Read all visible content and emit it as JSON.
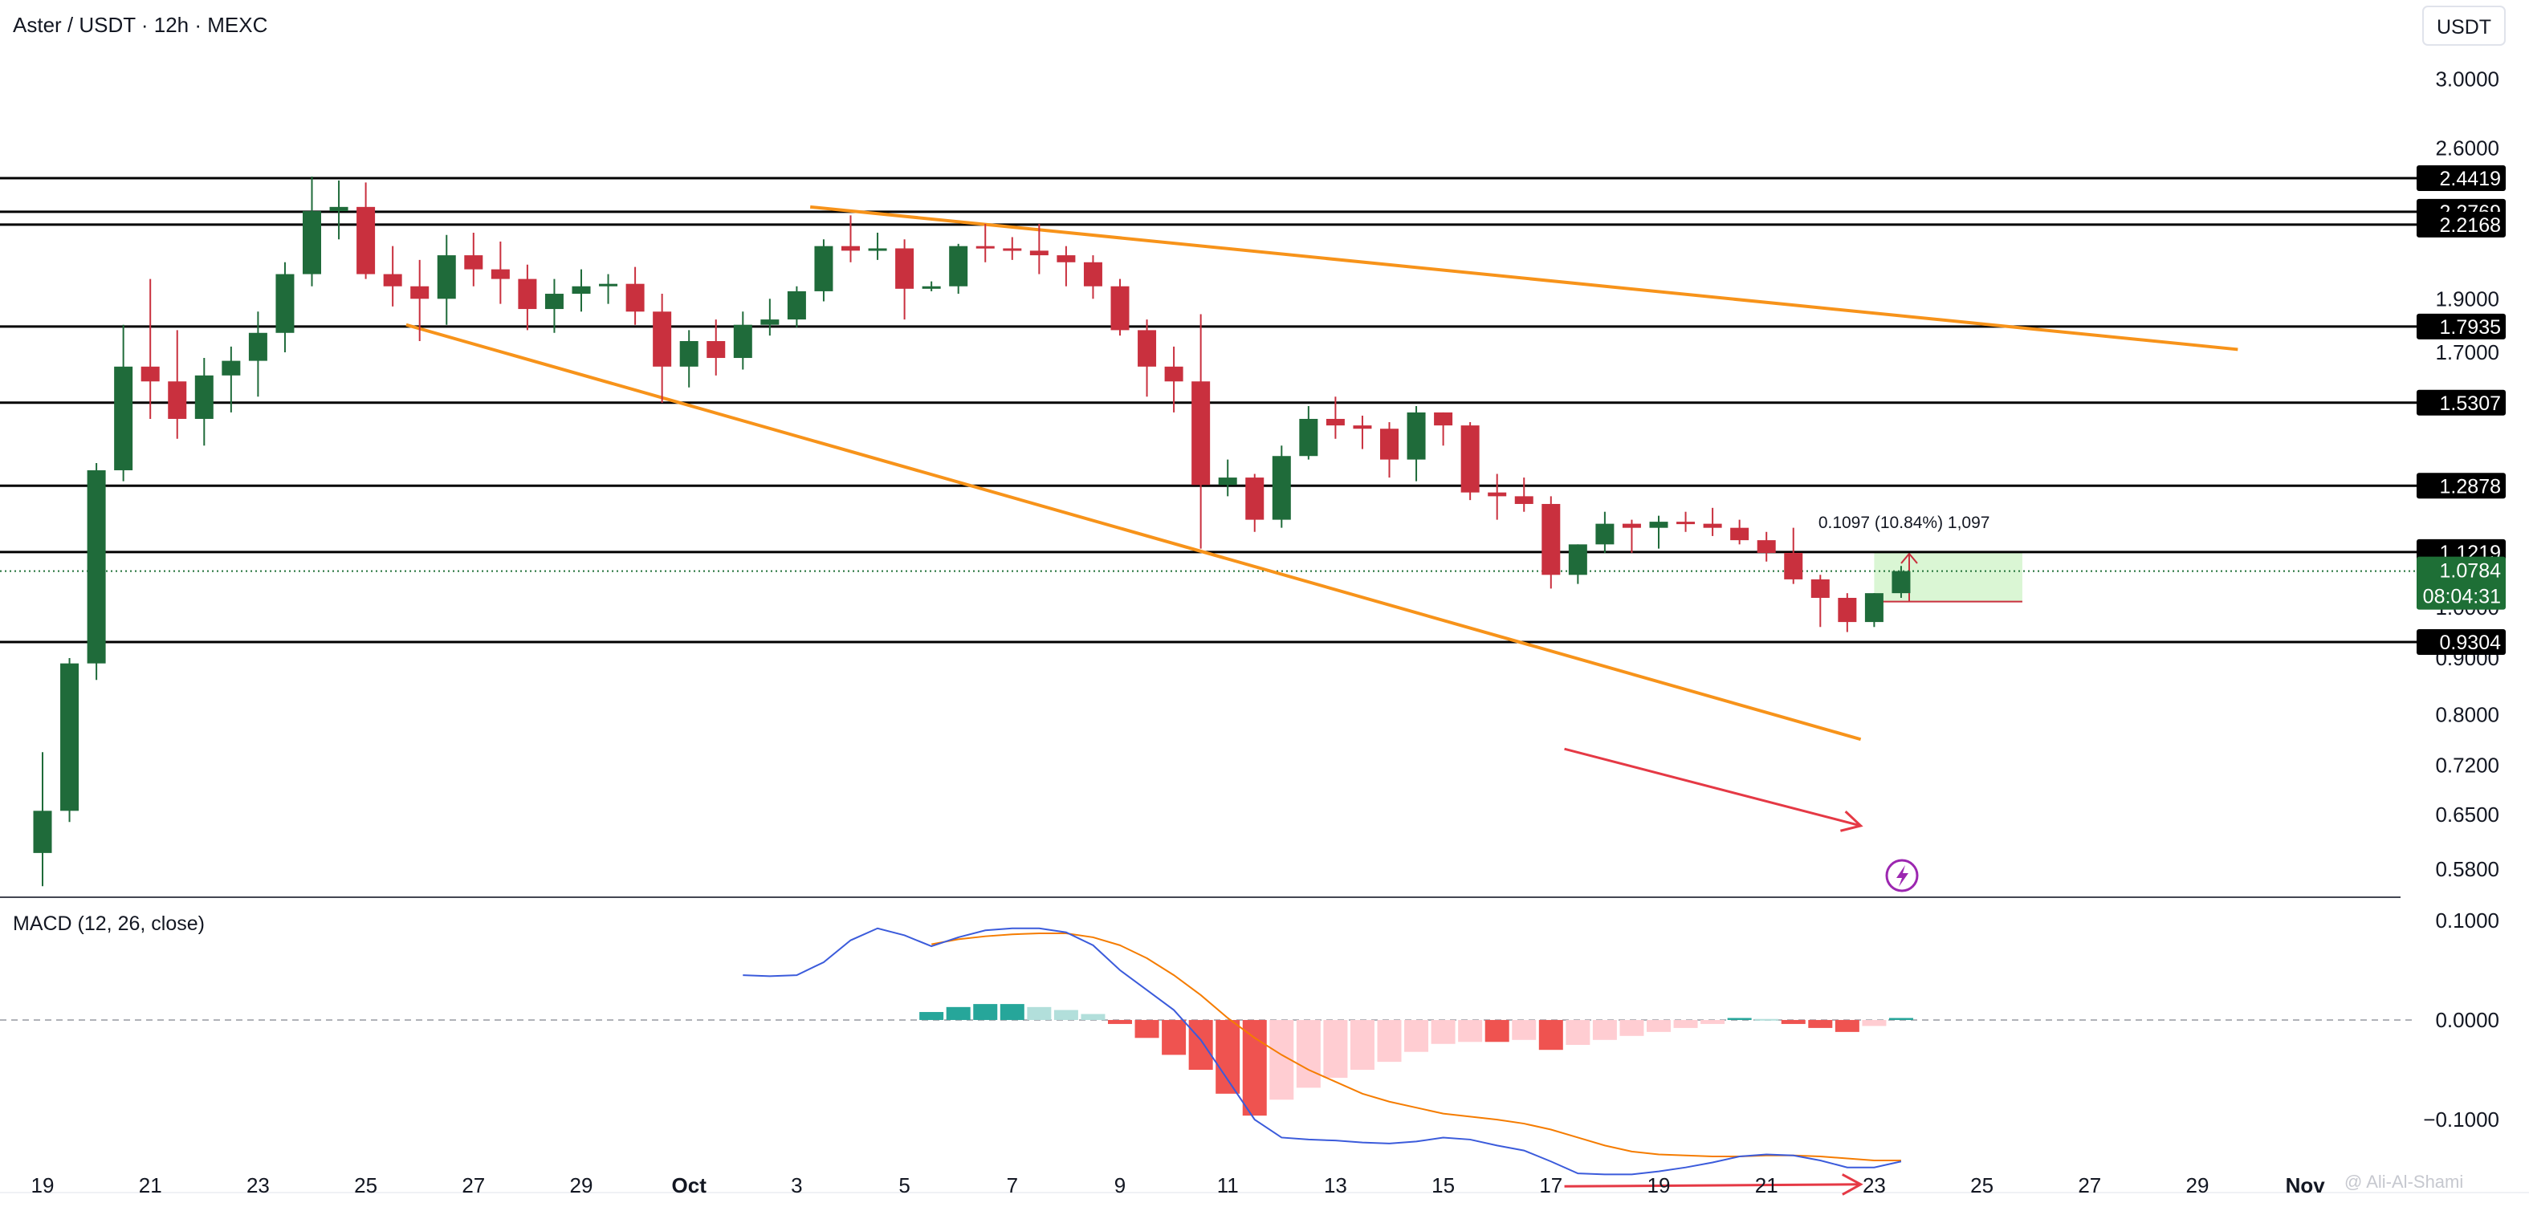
{
  "header": {
    "title": "Aster / USDT · 12h · MEXC",
    "currency_button": "USDT",
    "watermark": "@ Ali-Al-Shami"
  },
  "colors": {
    "bull": "#1f6b3a",
    "bear": "#c9303e",
    "trendline": "#f7931a",
    "arrow": "#e53945",
    "macd_line": "#3b5bdb",
    "signal_line": "#f57c00",
    "hist_pos_strong": "#26a69a",
    "hist_pos_weak": "#b2dfdb",
    "hist_neg_strong": "#ef5350",
    "hist_neg_weak": "#ffcdd2",
    "level_tag": "#000000",
    "current_tag": "#1e6f36",
    "measure_fill": "#d4f5cc"
  },
  "chart_data": [
    {
      "type": "candlestick",
      "title": "Aster / USDT · 12h · MEXC",
      "scale": "log",
      "ylim": [
        0.55,
        3.2
      ],
      "price_axis_labels": [
        "3.0000",
        "2.6000",
        "1.9000",
        "1.7000",
        "1.3000",
        "1.0000",
        "0.9000",
        "0.8000",
        "0.7200",
        "0.6500",
        "0.5800"
      ],
      "price_axis_values": [
        3.0,
        2.6,
        1.9,
        1.7,
        1.3,
        1.0,
        0.9,
        0.8,
        0.72,
        0.65,
        0.58
      ],
      "x_tick_labels": [
        "19",
        "21",
        "23",
        "25",
        "27",
        "29",
        "Oct",
        "3",
        "5",
        "7",
        "9",
        "11",
        "13",
        "15",
        "17",
        "19",
        "21",
        "23",
        "25",
        "27",
        "29",
        "Nov"
      ],
      "x_tick_index": [
        0,
        4,
        8,
        12,
        16,
        20,
        24,
        28,
        32,
        36,
        40,
        44,
        48,
        52,
        56,
        60,
        64,
        68,
        72,
        76,
        80,
        84
      ],
      "candles": [
        {
          "o": 0.6,
          "h": 0.74,
          "l": 0.56,
          "c": 0.655
        },
        {
          "o": 0.655,
          "h": 0.9,
          "l": 0.64,
          "c": 0.89
        },
        {
          "o": 0.89,
          "h": 1.35,
          "l": 0.86,
          "c": 1.33
        },
        {
          "o": 1.33,
          "h": 1.8,
          "l": 1.3,
          "c": 1.65
        },
        {
          "o": 1.65,
          "h": 1.98,
          "l": 1.48,
          "c": 1.6
        },
        {
          "o": 1.6,
          "h": 1.78,
          "l": 1.42,
          "c": 1.48
        },
        {
          "o": 1.48,
          "h": 1.68,
          "l": 1.4,
          "c": 1.62
        },
        {
          "o": 1.62,
          "h": 1.72,
          "l": 1.5,
          "c": 1.67
        },
        {
          "o": 1.67,
          "h": 1.85,
          "l": 1.55,
          "c": 1.77
        },
        {
          "o": 1.77,
          "h": 2.05,
          "l": 1.7,
          "c": 2.0
        },
        {
          "o": 2.0,
          "h": 2.45,
          "l": 1.95,
          "c": 2.28
        },
        {
          "o": 2.28,
          "h": 2.43,
          "l": 2.15,
          "c": 2.3
        },
        {
          "o": 2.3,
          "h": 2.42,
          "l": 1.98,
          "c": 2.0
        },
        {
          "o": 2.0,
          "h": 2.12,
          "l": 1.87,
          "c": 1.95
        },
        {
          "o": 1.95,
          "h": 2.06,
          "l": 1.74,
          "c": 1.9
        },
        {
          "o": 1.9,
          "h": 2.17,
          "l": 1.8,
          "c": 2.08
        },
        {
          "o": 2.08,
          "h": 2.18,
          "l": 1.95,
          "c": 2.02
        },
        {
          "o": 2.02,
          "h": 2.14,
          "l": 1.88,
          "c": 1.98
        },
        {
          "o": 1.98,
          "h": 2.04,
          "l": 1.78,
          "c": 1.86
        },
        {
          "o": 1.86,
          "h": 1.98,
          "l": 1.77,
          "c": 1.92
        },
        {
          "o": 1.92,
          "h": 2.02,
          "l": 1.85,
          "c": 1.95
        },
        {
          "o": 1.95,
          "h": 2.0,
          "l": 1.88,
          "c": 1.96
        },
        {
          "o": 1.96,
          "h": 2.03,
          "l": 1.8,
          "c": 1.85
        },
        {
          "o": 1.85,
          "h": 1.92,
          "l": 1.53,
          "c": 1.65
        },
        {
          "o": 1.65,
          "h": 1.78,
          "l": 1.58,
          "c": 1.74
        },
        {
          "o": 1.74,
          "h": 1.82,
          "l": 1.62,
          "c": 1.68
        },
        {
          "o": 1.68,
          "h": 1.85,
          "l": 1.64,
          "c": 1.8
        },
        {
          "o": 1.8,
          "h": 1.9,
          "l": 1.76,
          "c": 1.82
        },
        {
          "o": 1.82,
          "h": 1.95,
          "l": 1.79,
          "c": 1.93
        },
        {
          "o": 1.93,
          "h": 2.15,
          "l": 1.89,
          "c": 2.12
        },
        {
          "o": 2.12,
          "h": 2.26,
          "l": 2.05,
          "c": 2.1
        },
        {
          "o": 2.1,
          "h": 2.18,
          "l": 2.06,
          "c": 2.11
        },
        {
          "o": 2.11,
          "h": 2.15,
          "l": 1.82,
          "c": 1.94
        },
        {
          "o": 1.94,
          "h": 1.97,
          "l": 1.93,
          "c": 1.95
        },
        {
          "o": 1.95,
          "h": 2.13,
          "l": 1.92,
          "c": 2.12
        },
        {
          "o": 2.12,
          "h": 2.22,
          "l": 2.05,
          "c": 2.11
        },
        {
          "o": 2.11,
          "h": 2.16,
          "l": 2.06,
          "c": 2.1
        },
        {
          "o": 2.1,
          "h": 2.22,
          "l": 2.0,
          "c": 2.08
        },
        {
          "o": 2.08,
          "h": 2.12,
          "l": 1.95,
          "c": 2.05
        },
        {
          "o": 2.05,
          "h": 2.08,
          "l": 1.9,
          "c": 1.95
        },
        {
          "o": 1.95,
          "h": 1.98,
          "l": 1.76,
          "c": 1.78
        },
        {
          "o": 1.78,
          "h": 1.82,
          "l": 1.55,
          "c": 1.65
        },
        {
          "o": 1.65,
          "h": 1.72,
          "l": 1.5,
          "c": 1.6
        },
        {
          "o": 1.6,
          "h": 1.84,
          "l": 1.13,
          "c": 1.29
        },
        {
          "o": 1.29,
          "h": 1.36,
          "l": 1.26,
          "c": 1.31
        },
        {
          "o": 1.31,
          "h": 1.32,
          "l": 1.17,
          "c": 1.2
        },
        {
          "o": 1.2,
          "h": 1.4,
          "l": 1.18,
          "c": 1.37
        },
        {
          "o": 1.37,
          "h": 1.52,
          "l": 1.36,
          "c": 1.48
        },
        {
          "o": 1.48,
          "h": 1.55,
          "l": 1.42,
          "c": 1.46
        },
        {
          "o": 1.46,
          "h": 1.49,
          "l": 1.39,
          "c": 1.45
        },
        {
          "o": 1.45,
          "h": 1.47,
          "l": 1.31,
          "c": 1.36
        },
        {
          "o": 1.36,
          "h": 1.52,
          "l": 1.3,
          "c": 1.5
        },
        {
          "o": 1.5,
          "h": 1.5,
          "l": 1.4,
          "c": 1.46
        },
        {
          "o": 1.46,
          "h": 1.47,
          "l": 1.25,
          "c": 1.27
        },
        {
          "o": 1.27,
          "h": 1.32,
          "l": 1.2,
          "c": 1.26
        },
        {
          "o": 1.26,
          "h": 1.31,
          "l": 1.22,
          "c": 1.24
        },
        {
          "o": 1.24,
          "h": 1.26,
          "l": 1.04,
          "c": 1.07
        },
        {
          "o": 1.07,
          "h": 1.14,
          "l": 1.05,
          "c": 1.14
        },
        {
          "o": 1.14,
          "h": 1.22,
          "l": 1.12,
          "c": 1.19
        },
        {
          "o": 1.19,
          "h": 1.2,
          "l": 1.12,
          "c": 1.18
        },
        {
          "o": 1.18,
          "h": 1.21,
          "l": 1.13,
          "c": 1.195
        },
        {
          "o": 1.195,
          "h": 1.22,
          "l": 1.17,
          "c": 1.19
        },
        {
          "o": 1.19,
          "h": 1.23,
          "l": 1.16,
          "c": 1.18
        },
        {
          "o": 1.18,
          "h": 1.2,
          "l": 1.14,
          "c": 1.15
        },
        {
          "o": 1.15,
          "h": 1.17,
          "l": 1.1,
          "c": 1.12
        },
        {
          "o": 1.12,
          "h": 1.18,
          "l": 1.05,
          "c": 1.06
        },
        {
          "o": 1.06,
          "h": 1.07,
          "l": 0.96,
          "c": 1.02
        },
        {
          "o": 1.02,
          "h": 1.03,
          "l": 0.95,
          "c": 0.97
        },
        {
          "o": 0.97,
          "h": 1.03,
          "l": 0.96,
          "c": 1.03
        },
        {
          "o": 1.03,
          "h": 1.09,
          "l": 1.02,
          "c": 1.0784
        }
      ],
      "horizontal_levels": [
        2.4419,
        2.2769,
        2.2168,
        1.7935,
        1.5307,
        1.2878,
        1.1219,
        0.9304
      ],
      "level_labels": [
        "2.4419",
        "2.2769",
        "2.2168",
        "1.7935",
        "1.5307",
        "1.2878",
        "1.1219",
        "0.9304"
      ],
      "current_price": 1.0784,
      "current_price_label": "1.0784",
      "countdown_label": "08:04:31",
      "trendlines": [
        {
          "from": {
            "i": 28.5,
            "p": 2.3
          },
          "to": {
            "i": 81.5,
            "p": 1.71
          }
        },
        {
          "from": {
            "i": 13.5,
            "p": 1.8
          },
          "to": {
            "i": 67.5,
            "p": 0.76
          }
        }
      ],
      "price_arrow": {
        "from": {
          "i": 56.5,
          "p": 0.745
        },
        "to": {
          "i": 67.5,
          "p": 0.635
        }
      },
      "measurement": {
        "text": "0.1097 (10.84%) 1,097",
        "from_i": 68,
        "to_i": 73.5,
        "low": 1.0122,
        "high": 1.1219
      }
    },
    {
      "type": "macd",
      "title": "MACD (12, 26, close)",
      "ylim": [
        -0.17,
        0.12
      ],
      "axis_labels": [
        "0.1000",
        "0.0000",
        "−0.1000"
      ],
      "axis_values": [
        0.1,
        0.0,
        -0.1
      ],
      "histogram": [
        {
          "i": 33,
          "v": 0.008
        },
        {
          "i": 34,
          "v": 0.013
        },
        {
          "i": 35,
          "v": 0.016
        },
        {
          "i": 36,
          "v": 0.016
        },
        {
          "i": 37,
          "v": 0.013
        },
        {
          "i": 38,
          "v": 0.01
        },
        {
          "i": 39,
          "v": 0.006
        },
        {
          "i": 40,
          "v": -0.004
        },
        {
          "i": 41,
          "v": -0.018
        },
        {
          "i": 42,
          "v": -0.035
        },
        {
          "i": 43,
          "v": -0.05
        },
        {
          "i": 44,
          "v": -0.074
        },
        {
          "i": 45,
          "v": -0.096
        },
        {
          "i": 46,
          "v": -0.08
        },
        {
          "i": 47,
          "v": -0.068
        },
        {
          "i": 48,
          "v": -0.058
        },
        {
          "i": 49,
          "v": -0.05
        },
        {
          "i": 50,
          "v": -0.042
        },
        {
          "i": 51,
          "v": -0.032
        },
        {
          "i": 52,
          "v": -0.024
        },
        {
          "i": 53,
          "v": -0.022
        },
        {
          "i": 54,
          "v": -0.022
        },
        {
          "i": 55,
          "v": -0.02
        },
        {
          "i": 56,
          "v": -0.03
        },
        {
          "i": 57,
          "v": -0.025
        },
        {
          "i": 58,
          "v": -0.02
        },
        {
          "i": 59,
          "v": -0.016
        },
        {
          "i": 60,
          "v": -0.012
        },
        {
          "i": 61,
          "v": -0.008
        },
        {
          "i": 62,
          "v": -0.004
        },
        {
          "i": 63,
          "v": 0.002
        },
        {
          "i": 64,
          "v": 0.001
        },
        {
          "i": 65,
          "v": -0.004
        },
        {
          "i": 66,
          "v": -0.008
        },
        {
          "i": 67,
          "v": -0.012
        },
        {
          "i": 68,
          "v": -0.006
        },
        {
          "i": 69,
          "v": 0.002
        }
      ],
      "macd_line": [
        {
          "i": 26,
          "v": 0.045
        },
        {
          "i": 27,
          "v": 0.044
        },
        {
          "i": 28,
          "v": 0.045
        },
        {
          "i": 29,
          "v": 0.058
        },
        {
          "i": 30,
          "v": 0.08
        },
        {
          "i": 31,
          "v": 0.092
        },
        {
          "i": 32,
          "v": 0.085
        },
        {
          "i": 33,
          "v": 0.074
        },
        {
          "i": 34,
          "v": 0.083
        },
        {
          "i": 35,
          "v": 0.09
        },
        {
          "i": 36,
          "v": 0.092
        },
        {
          "i": 37,
          "v": 0.092
        },
        {
          "i": 38,
          "v": 0.088
        },
        {
          "i": 39,
          "v": 0.075
        },
        {
          "i": 40,
          "v": 0.05
        },
        {
          "i": 41,
          "v": 0.03
        },
        {
          "i": 42,
          "v": 0.01
        },
        {
          "i": 43,
          "v": -0.02
        },
        {
          "i": 44,
          "v": -0.06
        },
        {
          "i": 45,
          "v": -0.1
        },
        {
          "i": 46,
          "v": -0.118
        },
        {
          "i": 47,
          "v": -0.12
        },
        {
          "i": 48,
          "v": -0.121
        },
        {
          "i": 49,
          "v": -0.123
        },
        {
          "i": 50,
          "v": -0.124
        },
        {
          "i": 51,
          "v": -0.122
        },
        {
          "i": 52,
          "v": -0.118
        },
        {
          "i": 53,
          "v": -0.12
        },
        {
          "i": 54,
          "v": -0.126
        },
        {
          "i": 55,
          "v": -0.131
        },
        {
          "i": 56,
          "v": -0.142
        },
        {
          "i": 57,
          "v": -0.154
        },
        {
          "i": 58,
          "v": -0.155
        },
        {
          "i": 59,
          "v": -0.155
        },
        {
          "i": 60,
          "v": -0.152
        },
        {
          "i": 61,
          "v": -0.148
        },
        {
          "i": 62,
          "v": -0.143
        },
        {
          "i": 63,
          "v": -0.137
        },
        {
          "i": 64,
          "v": -0.135
        },
        {
          "i": 65,
          "v": -0.136
        },
        {
          "i": 66,
          "v": -0.141
        },
        {
          "i": 67,
          "v": -0.148
        },
        {
          "i": 68,
          "v": -0.148
        },
        {
          "i": 69,
          "v": -0.142
        }
      ],
      "signal_line": [
        {
          "i": 33,
          "v": 0.076
        },
        {
          "i": 34,
          "v": 0.081
        },
        {
          "i": 35,
          "v": 0.084
        },
        {
          "i": 36,
          "v": 0.086
        },
        {
          "i": 37,
          "v": 0.087
        },
        {
          "i": 38,
          "v": 0.087
        },
        {
          "i": 39,
          "v": 0.083
        },
        {
          "i": 40,
          "v": 0.075
        },
        {
          "i": 41,
          "v": 0.062
        },
        {
          "i": 42,
          "v": 0.045
        },
        {
          "i": 43,
          "v": 0.025
        },
        {
          "i": 44,
          "v": 0.002
        },
        {
          "i": 45,
          "v": -0.018
        },
        {
          "i": 46,
          "v": -0.035
        },
        {
          "i": 47,
          "v": -0.05
        },
        {
          "i": 48,
          "v": -0.062
        },
        {
          "i": 49,
          "v": -0.074
        },
        {
          "i": 50,
          "v": -0.082
        },
        {
          "i": 51,
          "v": -0.088
        },
        {
          "i": 52,
          "v": -0.094
        },
        {
          "i": 53,
          "v": -0.097
        },
        {
          "i": 54,
          "v": -0.1
        },
        {
          "i": 55,
          "v": -0.104
        },
        {
          "i": 56,
          "v": -0.11
        },
        {
          "i": 57,
          "v": -0.118
        },
        {
          "i": 58,
          "v": -0.126
        },
        {
          "i": 59,
          "v": -0.132
        },
        {
          "i": 60,
          "v": -0.135
        },
        {
          "i": 61,
          "v": -0.136
        },
        {
          "i": 62,
          "v": -0.137
        },
        {
          "i": 63,
          "v": -0.137
        },
        {
          "i": 64,
          "v": -0.136
        },
        {
          "i": 65,
          "v": -0.136
        },
        {
          "i": 66,
          "v": -0.137
        },
        {
          "i": 67,
          "v": -0.139
        },
        {
          "i": 68,
          "v": -0.141
        },
        {
          "i": 69,
          "v": -0.141
        }
      ],
      "macd_arrow": {
        "from": {
          "i": 56.5,
          "v": -0.167
        },
        "to": {
          "i": 67.5,
          "v": -0.165
        }
      }
    }
  ]
}
